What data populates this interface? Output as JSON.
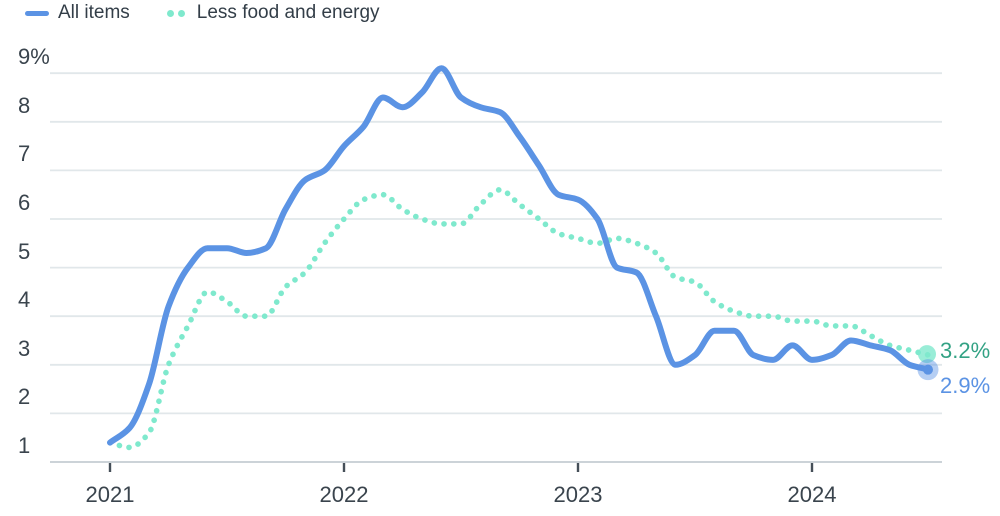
{
  "legend": {
    "items": [
      {
        "label": "All items",
        "swatch": "solid-line"
      },
      {
        "label": "Less food and energy",
        "swatch": "dotted-line"
      }
    ]
  },
  "colors": {
    "all_items_line": "#5b93e4",
    "core_line": "#7fe9cd",
    "all_items_label": "#5b93e4",
    "core_label": "#33a284",
    "gridline": "#e1e7ea",
    "axis_line": "#ccd3d8",
    "tick_mark": "#454f58",
    "text_dark": "#3a444d"
  },
  "chart_data": {
    "type": "line",
    "title": "",
    "xlabel": "",
    "ylabel": "",
    "ylim": [
      1,
      9
    ],
    "grid": "horizontal",
    "legend_position": "top-left",
    "x_monthly": [
      "2021-01",
      "2021-02",
      "2021-03",
      "2021-04",
      "2021-05",
      "2021-06",
      "2021-07",
      "2021-08",
      "2021-09",
      "2021-10",
      "2021-11",
      "2021-12",
      "2022-01",
      "2022-02",
      "2022-03",
      "2022-04",
      "2022-05",
      "2022-06",
      "2022-07",
      "2022-08",
      "2022-09",
      "2022-10",
      "2022-11",
      "2022-12",
      "2023-01",
      "2023-02",
      "2023-03",
      "2023-04",
      "2023-05",
      "2023-06",
      "2023-07",
      "2023-08",
      "2023-09",
      "2023-10",
      "2023-11",
      "2023-12",
      "2024-01",
      "2024-02",
      "2024-03",
      "2024-04",
      "2024-05",
      "2024-06",
      "2024-07"
    ],
    "series": [
      {
        "name": "All items",
        "style": "solid",
        "color": "#5b93e4",
        "end_label": "2.9%",
        "label_color": "#5b93e4",
        "values": [
          1.4,
          1.7,
          2.6,
          4.2,
          5.0,
          5.4,
          5.4,
          5.3,
          5.4,
          6.2,
          6.8,
          7.0,
          7.5,
          7.9,
          8.5,
          8.3,
          8.6,
          9.1,
          8.5,
          8.3,
          8.2,
          7.7,
          7.1,
          6.5,
          6.4,
          6.0,
          5.0,
          4.9,
          4.0,
          3.0,
          3.2,
          3.7,
          3.7,
          3.2,
          3.1,
          3.4,
          3.1,
          3.2,
          3.5,
          3.4,
          3.3,
          3.0,
          2.9
        ]
      },
      {
        "name": "Less food and energy",
        "style": "dotted",
        "color": "#7fe9cd",
        "end_label": "3.2%",
        "label_color": "#33a284",
        "values": [
          1.4,
          1.3,
          1.6,
          3.0,
          3.8,
          4.5,
          4.3,
          4.0,
          4.0,
          4.6,
          4.9,
          5.5,
          6.0,
          6.4,
          6.5,
          6.2,
          6.0,
          5.9,
          5.9,
          6.3,
          6.6,
          6.3,
          6.0,
          5.7,
          5.6,
          5.5,
          5.6,
          5.5,
          5.3,
          4.8,
          4.7,
          4.3,
          4.1,
          4.0,
          4.0,
          3.9,
          3.9,
          3.8,
          3.8,
          3.6,
          3.4,
          3.3,
          3.2
        ]
      }
    ],
    "y_ticks": [
      {
        "label": "9%",
        "value": 9
      },
      {
        "label": "8",
        "value": 8
      },
      {
        "label": "7",
        "value": 7
      },
      {
        "label": "6",
        "value": 6
      },
      {
        "label": "5",
        "value": 5
      },
      {
        "label": "4",
        "value": 4
      },
      {
        "label": "3",
        "value": 3
      },
      {
        "label": "2",
        "value": 2
      },
      {
        "label": "1",
        "value": 1
      }
    ],
    "x_ticks": [
      {
        "label": "2021",
        "month_index": 0
      },
      {
        "label": "2022",
        "month_index": 12
      },
      {
        "label": "2023",
        "month_index": 24
      },
      {
        "label": "2024",
        "month_index": 36
      }
    ]
  }
}
